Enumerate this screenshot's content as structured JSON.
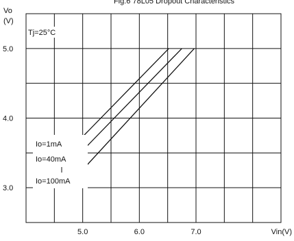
{
  "chart_data": {
    "type": "line",
    "title": "Fig.6 78L05 Dropout Characteristics",
    "condition": "Tj=25°C",
    "ylabel_top": "Vo",
    "ylabel_unit": "(V)",
    "xlabel": "Vin(V)",
    "xlim": [
      4.0,
      8.5
    ],
    "ylim": [
      2.5,
      5.5
    ],
    "x_ticks": [
      {
        "value": 5.0,
        "label": "5.0"
      },
      {
        "value": 6.0,
        "label": "6.0"
      },
      {
        "value": 7.0,
        "label": "7.0"
      }
    ],
    "y_ticks": [
      {
        "value": 3.0,
        "label": "3.0"
      },
      {
        "value": 4.0,
        "label": "4.0"
      },
      {
        "value": 5.0,
        "label": "5.0"
      }
    ],
    "grid": true,
    "series": [
      {
        "name": "Io=1mA",
        "x": [
          4.9,
          6.52
        ],
        "y": [
          3.65,
          5.0
        ]
      },
      {
        "name": "Io=40mA",
        "x": [
          4.9,
          6.75
        ],
        "y": [
          3.45,
          5.0
        ]
      },
      {
        "name": "Io=100mA",
        "x": [
          4.9,
          6.97
        ],
        "y": [
          3.17,
          5.0
        ]
      }
    ]
  },
  "style": {
    "line_color": "#111111",
    "grid_color": "#111111",
    "background": "#ffffff"
  }
}
